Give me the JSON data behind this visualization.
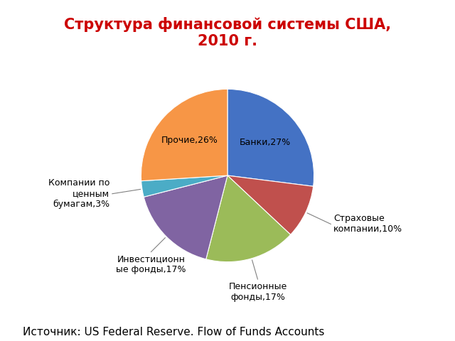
{
  "title": "Структура финансовой системы США,\n2010 г.",
  "title_color": "#cc0000",
  "title_fontsize": 15,
  "slices": [
    {
      "label": "Банки,27%",
      "value": 27,
      "color": "#4472C4"
    },
    {
      "label": "Страховые\nкомпании,10%",
      "value": 10,
      "color": "#C0504D"
    },
    {
      "label": "Пенсионные\nфонды,17%",
      "value": 17,
      "color": "#9BBB59"
    },
    {
      "label": "Инвестиционн\nые фонды,17%",
      "value": 17,
      "color": "#8064A2"
    },
    {
      "label": "Компании по\nценным\nбумагам,3%",
      "value": 3,
      "color": "#4BACC6"
    },
    {
      "label": "Прочие,26%",
      "value": 26,
      "color": "#F79646"
    }
  ],
  "source_text": "Источник: US Federal Reserve. Flow of Funds Accounts",
  "source_fontsize": 11,
  "background_color": "#ffffff",
  "startangle": 90
}
